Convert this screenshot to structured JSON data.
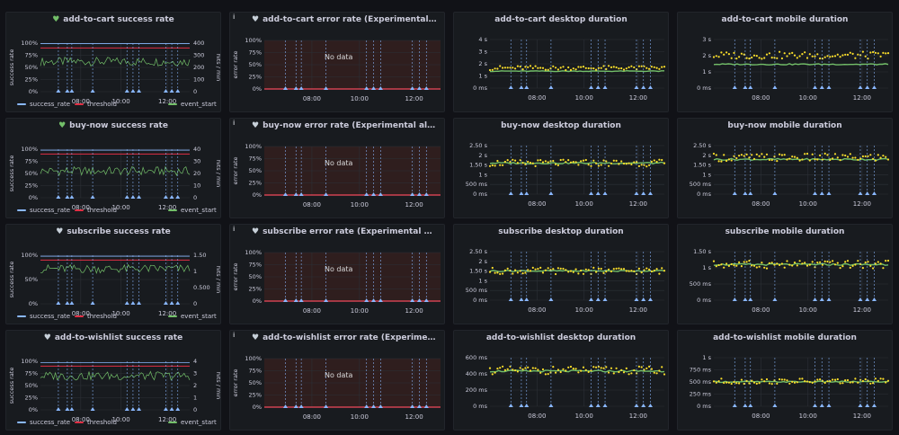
{
  "colors": {
    "success": "#73bf69",
    "threshold": "#e02f44",
    "hits": "#73bf69",
    "event": "#8ab8ff",
    "rate_line": "#73bf69",
    "desktop_pts": "#fade2a",
    "mobile_pts": "#fade2a",
    "green_line": "#73bf69",
    "red_line": "#f2495c"
  },
  "x_ticks": [
    "08:00",
    "10:00",
    "12:00"
  ],
  "events": [
    0.12,
    0.18,
    0.21,
    0.35,
    0.58,
    0.62,
    0.66,
    0.84,
    0.88,
    0.92
  ],
  "legend": {
    "success_rate": "success_rate",
    "threshold": "threshold",
    "event_start": "event_start"
  },
  "labels": {
    "success_axis": "success rate",
    "hits_axis": "hits / min",
    "error_axis": "error rate",
    "no_data": "No data"
  },
  "rows": [
    {
      "success": {
        "title": "add-to-cart success rate",
        "heart": "green",
        "y_ticks": [
          "100%",
          "75%",
          "50%",
          "25%",
          "0%"
        ],
        "r_ticks": [
          "400",
          "300",
          "200",
          "100",
          "0"
        ],
        "success_level": 0.99,
        "hits_level": 0.62,
        "threshold_level": 0.9
      },
      "error": {
        "title": "add-to-cart error rate (Experimental alerts - no mess...",
        "y_ticks": [
          "100%",
          "75%",
          "50%",
          "25%",
          "0%"
        ]
      },
      "desktop": {
        "title": "add-to-cart desktop duration",
        "y_ticks": [
          "4 s",
          "3 s",
          "2 s",
          "1 s",
          "0 ms"
        ],
        "ymax": 4.5,
        "pts_level": 1.9,
        "line_level": 1.6
      },
      "mobile": {
        "title": "add-to-cart mobile duration",
        "y_ticks": [
          "3 s",
          "2 s",
          "1 s",
          "0 ms"
        ],
        "ymax": 3.2,
        "pts_level": 2.2,
        "line_level": 1.6
      }
    },
    {
      "success": {
        "title": "buy-now success rate",
        "heart": "green",
        "y_ticks": [
          "100%",
          "75%",
          "50%",
          "25%",
          "0%"
        ],
        "r_ticks": [
          "40",
          "30",
          "20",
          "10",
          "0"
        ],
        "success_level": 0.98,
        "hits_level": 0.55,
        "threshold_level": 0.9
      },
      "error": {
        "title": "buy-now error rate (Experimental alerts - no messag...",
        "y_ticks": [
          "100%",
          "75%",
          "50%",
          "25%",
          "0%"
        ]
      },
      "desktop": {
        "title": "buy-now desktop duration",
        "y_ticks": [
          "2.50 s",
          "2 s",
          "1.50 s",
          "1 s",
          "500 ms",
          "0 ms"
        ],
        "ymax": 2.6,
        "pts_level": 1.7,
        "line_level": 1.7
      },
      "mobile": {
        "title": "buy-now mobile duration",
        "y_ticks": [
          "2.50 s",
          "2 s",
          "1.50 s",
          "1 s",
          "500 ms",
          "0 ms"
        ],
        "ymax": 2.6,
        "pts_level": 2.0,
        "line_level": 1.9
      }
    },
    {
      "success": {
        "title": "subscribe success rate",
        "heart": "grey",
        "y_ticks": [
          "100%",
          "50%",
          "0%"
        ],
        "r_ticks": [
          "1.50",
          "1",
          "0.500",
          "0"
        ],
        "success_level": 0.98,
        "hits_level": 0.72,
        "threshold_level": 0.9
      },
      "error": {
        "title": "subscribe error rate (Experimental alerts - no messa...",
        "y_ticks": [
          "100%",
          "75%",
          "50%",
          "25%",
          "0%"
        ]
      },
      "desktop": {
        "title": "subscribe desktop duration",
        "y_ticks": [
          "2.50 s",
          "2 s",
          "1.50 s",
          "1 s",
          "500 ms",
          "0 ms"
        ],
        "ymax": 2.6,
        "pts_level": 1.6,
        "line_level": 1.6
      },
      "mobile": {
        "title": "subscribe mobile duration",
        "y_ticks": [
          "1.50 s",
          "1 s",
          "500 ms",
          "0 ms"
        ],
        "ymax": 1.6,
        "pts_level": 1.2,
        "line_level": 1.2
      }
    },
    {
      "success": {
        "title": "add-to-wishlist success rate",
        "heart": "grey",
        "y_ticks": [
          "100%",
          "75%",
          "50%",
          "25%",
          "0%"
        ],
        "r_ticks": [
          "4",
          "3",
          "2",
          "1",
          "0"
        ],
        "success_level": 0.97,
        "hits_level": 0.7,
        "threshold_level": 0.9
      },
      "error": {
        "title": "add-to-wishlist error rate (Experimental alerts - no ...",
        "y_ticks": [
          "100%",
          "75%",
          "50%",
          "25%",
          "0%"
        ]
      },
      "desktop": {
        "title": "add-to-wishlist desktop duration",
        "y_ticks": [
          "600 ms",
          "400 ms",
          "200 ms",
          "0 ms"
        ],
        "ymax": 650,
        "pts_level": 490,
        "line_level": 480
      },
      "mobile": {
        "title": "add-to-wishlist mobile duration",
        "y_ticks": [
          "1 s",
          "750 ms",
          "500 ms",
          "250 ms",
          "0 ms"
        ],
        "ymax": 1.05,
        "pts_level": 0.55,
        "line_level": 0.54
      }
    }
  ]
}
